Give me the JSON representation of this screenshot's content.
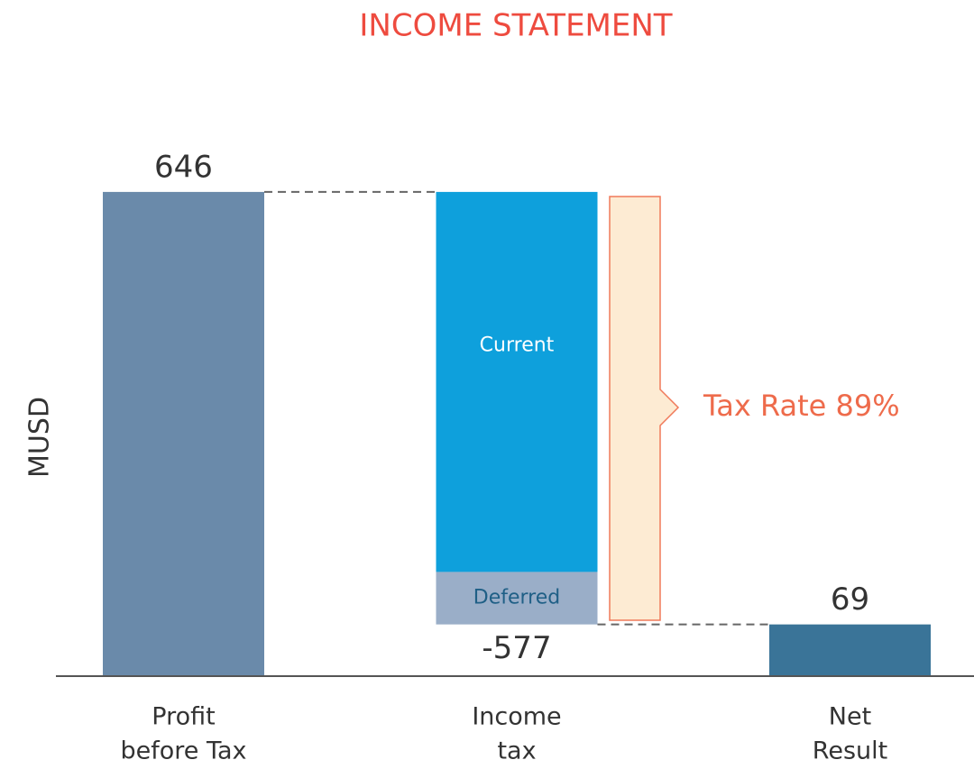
{
  "chart_data": {
    "type": "waterfall",
    "title": "INCOME STATEMENT",
    "y_label": "MUSD",
    "categories": [
      [
        "Profit",
        "before Tax"
      ],
      [
        "Income",
        "tax"
      ],
      [
        "Net",
        "Result"
      ]
    ],
    "values": [
      646,
      -577,
      69
    ],
    "colors": [
      "#6a8aaa",
      "#0ea0dc",
      "#3a7498"
    ],
    "segments": [
      {
        "name": "Current",
        "value": -507,
        "color": "#0ea0dc",
        "label_color": "#ffffff"
      },
      {
        "name": "Deferred",
        "value": -70,
        "color": "#9aaec8",
        "label_color": "#1f5f86"
      }
    ],
    "annotation": "Tax Rate 89%",
    "ylim": [
      0,
      700
    ]
  }
}
